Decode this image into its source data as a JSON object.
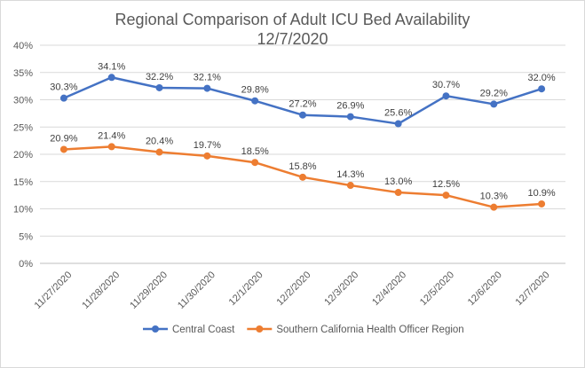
{
  "chart_data": {
    "type": "line",
    "title": "Regional Comparison of Adult ICU Bed Availability",
    "subtitle": "12/7/2020",
    "categories": [
      "11/27/2020",
      "11/28/2020",
      "11/29/2020",
      "11/30/2020",
      "12/1/2020",
      "12/2/2020",
      "12/3/2020",
      "12/4/2020",
      "12/5/2020",
      "12/6/2020",
      "12/7/2020"
    ],
    "yticks": [
      "0%",
      "5%",
      "10%",
      "15%",
      "20%",
      "25%",
      "30%",
      "35%",
      "40%"
    ],
    "ylim": [
      0,
      40
    ],
    "grid": true,
    "legend_position": "bottom",
    "series": [
      {
        "name": "Central Coast",
        "color": "#4472c4",
        "values": [
          30.3,
          34.1,
          32.2,
          32.1,
          29.8,
          27.2,
          26.9,
          25.6,
          30.7,
          29.2,
          32.0
        ],
        "labels": [
          "30.3%",
          "34.1%",
          "32.2%",
          "32.1%",
          "29.8%",
          "27.2%",
          "26.9%",
          "25.6%",
          "30.7%",
          "29.2%",
          "32.0%"
        ]
      },
      {
        "name": "Southern California Health Officer Region",
        "color": "#ed7d31",
        "values": [
          20.9,
          21.4,
          20.4,
          19.7,
          18.5,
          15.8,
          14.3,
          13.0,
          12.5,
          10.3,
          10.9
        ],
        "labels": [
          "20.9%",
          "21.4%",
          "20.4%",
          "19.7%",
          "18.5%",
          "15.8%",
          "14.3%",
          "13.0%",
          "12.5%",
          "10.3%",
          "10.9%"
        ]
      }
    ]
  }
}
